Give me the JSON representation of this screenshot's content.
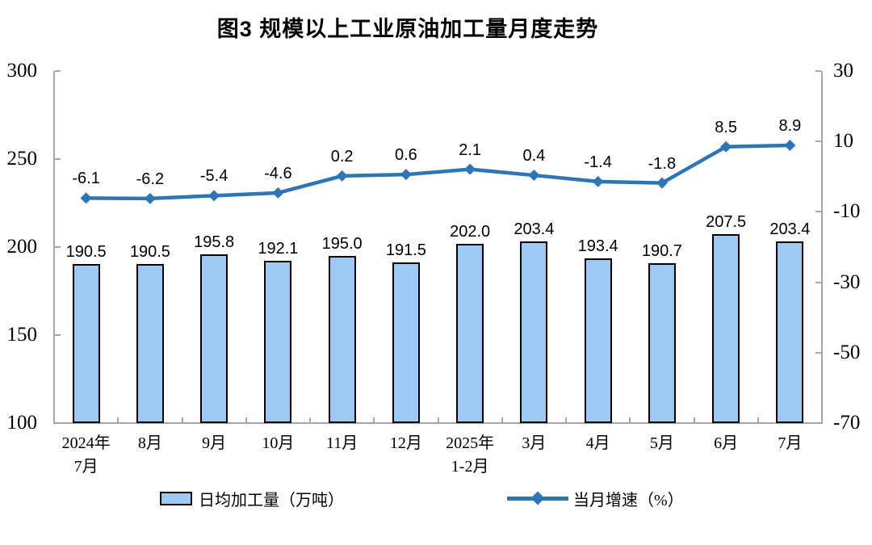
{
  "title": "图3 规模以上工业原油加工量月度走势",
  "chart_data": {
    "type": "combo-bar-line",
    "title": "图3 规模以上工业原油加工量月度走势",
    "categories": [
      "2024年\n7月",
      "8月",
      "9月",
      "10月",
      "11月",
      "12月",
      "2025年\n1-2月",
      "3月",
      "4月",
      "5月",
      "6月",
      "7月"
    ],
    "series": [
      {
        "name": "日均加工量（万吨）",
        "type": "bar",
        "axis": "left",
        "values": [
          190.5,
          190.5,
          195.8,
          192.1,
          195.0,
          191.5,
          202.0,
          203.4,
          193.4,
          190.7,
          207.5,
          203.4
        ],
        "color": "#9EC9F2",
        "border_color": "#000000"
      },
      {
        "name": "当月增速（%）",
        "type": "line",
        "axis": "right",
        "values": [
          -6.1,
          -6.2,
          -5.4,
          -4.6,
          0.2,
          0.6,
          2.1,
          0.4,
          -1.4,
          -1.8,
          8.5,
          8.9
        ],
        "color": "#2E75B6"
      }
    ],
    "left_axis": {
      "min": 100,
      "max": 300,
      "step": 50
    },
    "right_axis": {
      "min": -70,
      "max": 30,
      "step": 20
    },
    "grid": false,
    "legend_position": "bottom",
    "axis_color": "#A6A6A6",
    "label_color": "#000000"
  }
}
